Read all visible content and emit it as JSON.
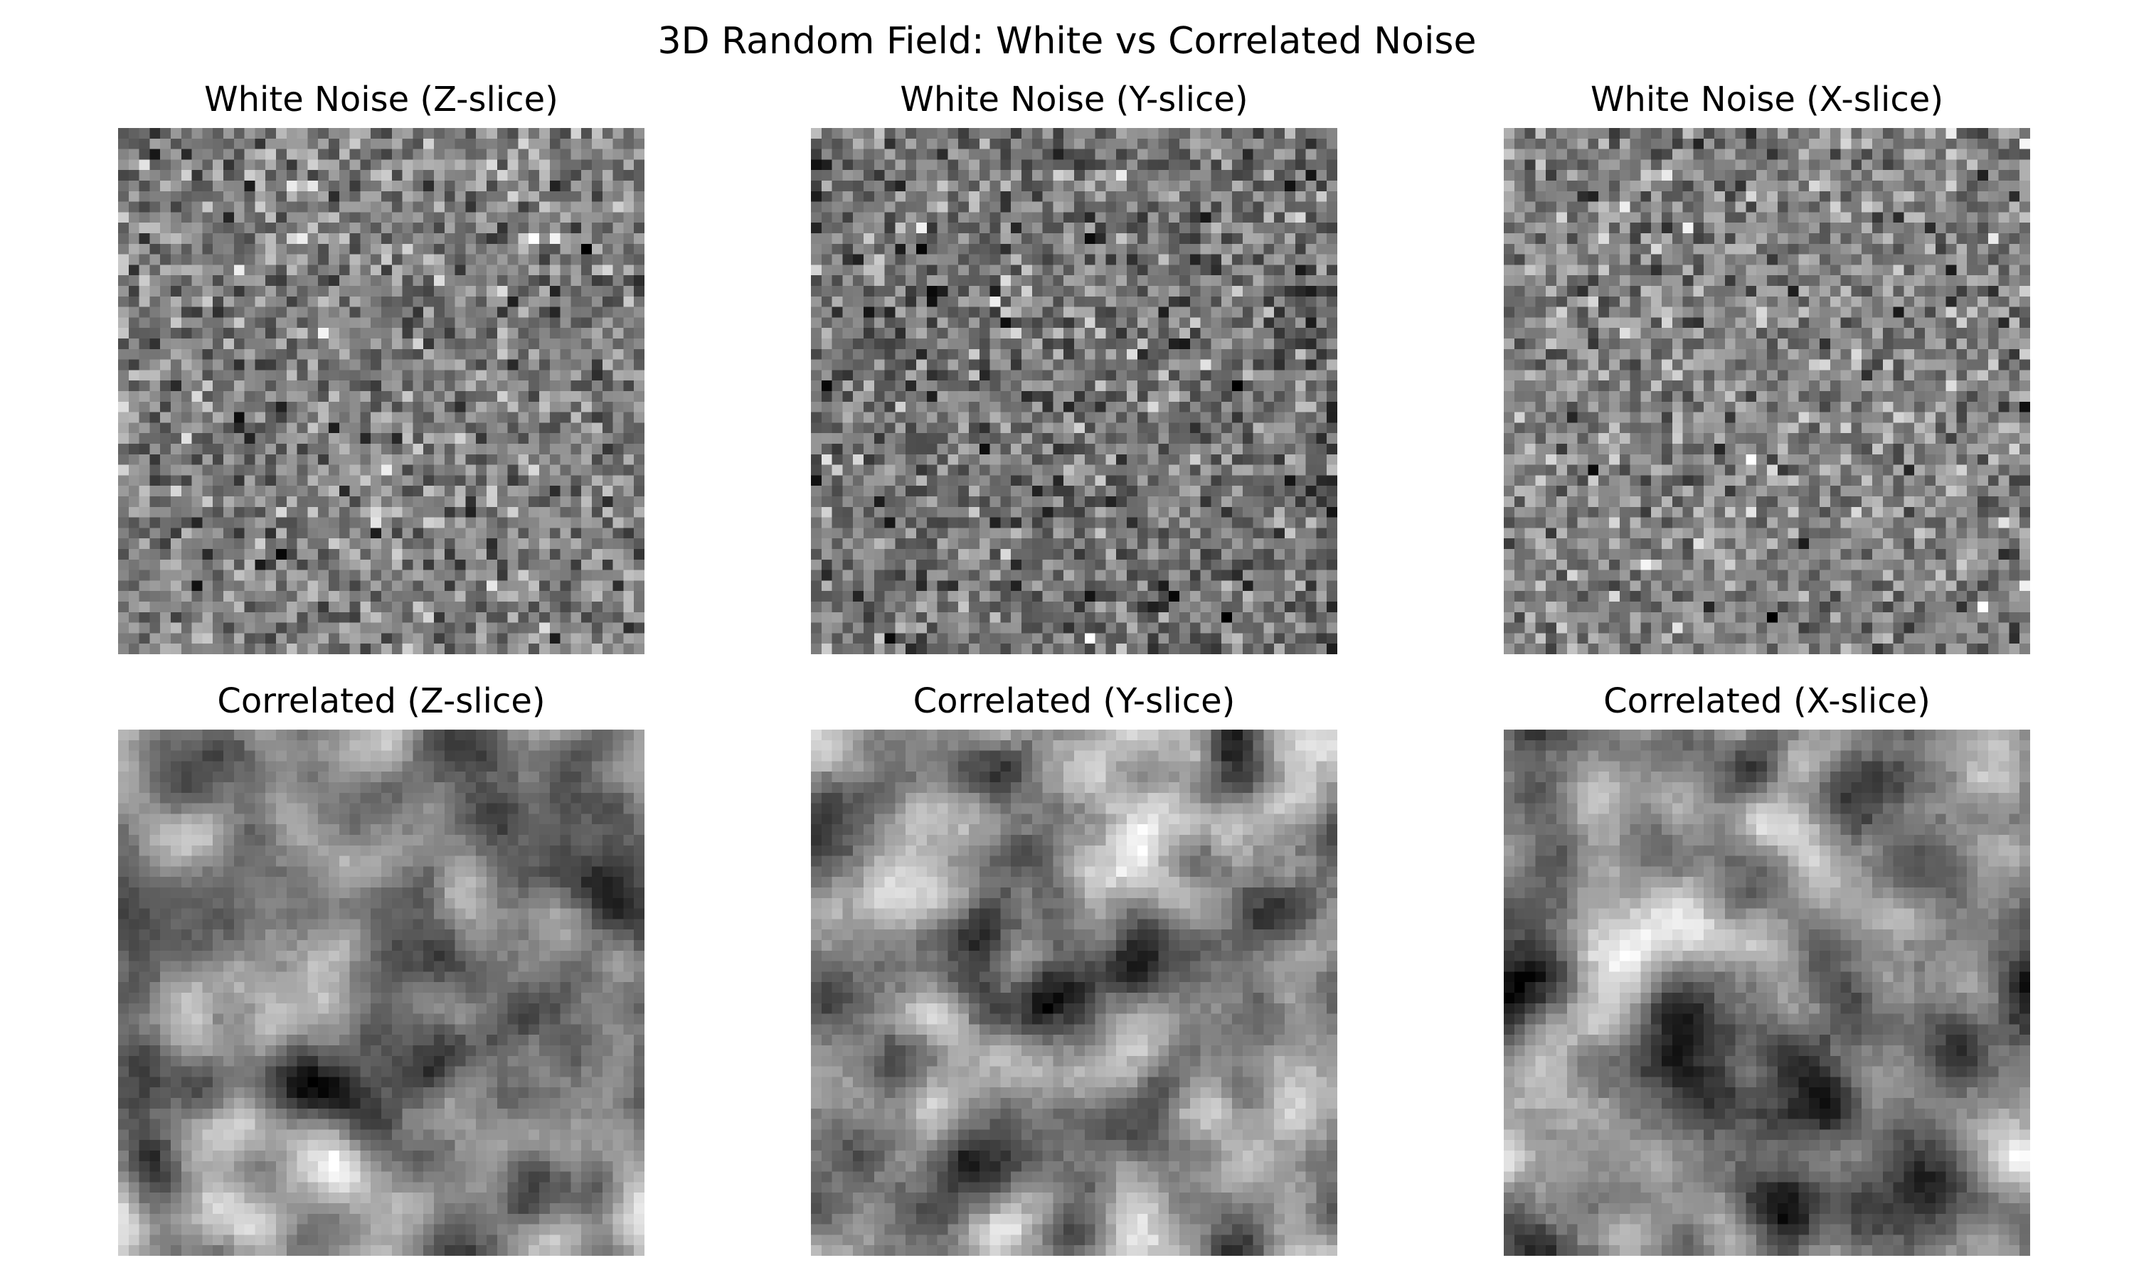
{
  "figure": {
    "title": "3D Random Field: White vs Correlated Noise"
  },
  "chart_data": [
    {
      "type": "heatmap",
      "title": "White Noise (Z-slice)",
      "colormap": "gray",
      "grid_size": [
        50,
        50
      ],
      "field": "white",
      "seed": 11,
      "axes": "off"
    },
    {
      "type": "heatmap",
      "title": "White Noise (Y-slice)",
      "colormap": "gray",
      "grid_size": [
        50,
        50
      ],
      "field": "white",
      "seed": 23,
      "axes": "off"
    },
    {
      "type": "heatmap",
      "title": "White Noise (X-slice)",
      "colormap": "gray",
      "grid_size": [
        50,
        50
      ],
      "field": "white",
      "seed": 37,
      "axes": "off"
    },
    {
      "type": "heatmap",
      "title": "Correlated (Z-slice)",
      "colormap": "gray",
      "grid_size": [
        50,
        50
      ],
      "field": "correlated",
      "seed": 41,
      "axes": "off"
    },
    {
      "type": "heatmap",
      "title": "Correlated (Y-slice)",
      "colormap": "gray",
      "grid_size": [
        50,
        50
      ],
      "field": "correlated",
      "seed": 53,
      "axes": "off"
    },
    {
      "type": "heatmap",
      "title": "Correlated (X-slice)",
      "colormap": "gray",
      "grid_size": [
        50,
        50
      ],
      "field": "correlated",
      "seed": 67,
      "axes": "off"
    }
  ]
}
